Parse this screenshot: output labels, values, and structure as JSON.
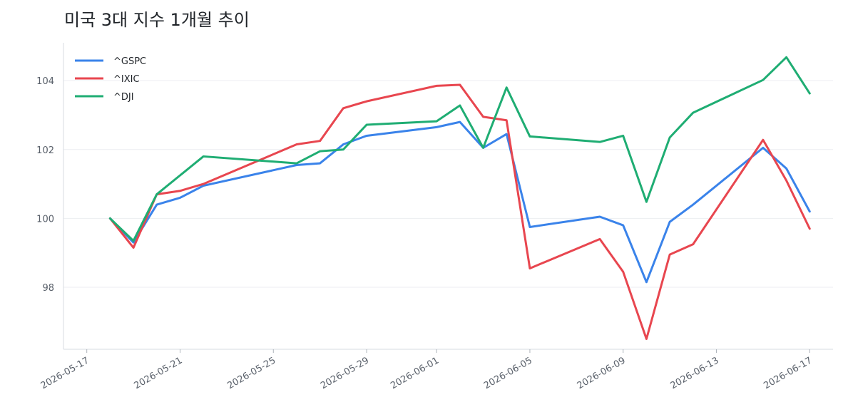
{
  "chart_data": {
    "type": "line",
    "title": "미국 3대 지수 1개월 추이",
    "xlabel": "",
    "ylabel": "",
    "x_tick_labels": [
      "2026-05-17",
      "2026-05-21",
      "2026-05-25",
      "2026-05-29",
      "2026-06-01",
      "2026-06-05",
      "2026-06-09",
      "2026-06-13",
      "2026-06-17"
    ],
    "y_ticks": [
      98,
      100,
      102,
      104
    ],
    "xlim": [
      "2026-05-16",
      "2026-06-18"
    ],
    "ylim": [
      96.2,
      105.1
    ],
    "grid": "horizontal",
    "legend_position": "top-left",
    "x": [
      "2026-05-18",
      "2026-05-19",
      "2026-05-20",
      "2026-05-21",
      "2026-05-22",
      "2026-05-26",
      "2026-05-27",
      "2026-05-28",
      "2026-05-29",
      "2026-06-01",
      "2026-06-02",
      "2026-06-03",
      "2026-06-04",
      "2026-06-05",
      "2026-06-08",
      "2026-06-09",
      "2026-06-10",
      "2026-06-11",
      "2026-06-12",
      "2026-06-15",
      "2026-06-16",
      "2026-06-17"
    ],
    "series": [
      {
        "name": "^GSPC",
        "color": "#3a83ea",
        "values": [
          100.0,
          99.3,
          100.4,
          100.6,
          100.95,
          101.55,
          101.6,
          102.15,
          102.4,
          102.65,
          102.8,
          102.05,
          102.45,
          99.75,
          100.05,
          99.8,
          98.15,
          99.9,
          100.4,
          102.05,
          101.45,
          100.2
        ]
      },
      {
        "name": "^IXIC",
        "color": "#e8464f",
        "values": [
          100.0,
          99.15,
          100.7,
          100.8,
          101.0,
          102.15,
          102.25,
          103.2,
          103.4,
          103.85,
          103.88,
          102.95,
          102.85,
          98.55,
          99.4,
          98.45,
          96.5,
          98.95,
          99.25,
          102.28,
          101.1,
          99.7
        ]
      },
      {
        "name": "^DJI",
        "color": "#1fad73",
        "values": [
          100.0,
          99.35,
          100.7,
          101.25,
          101.8,
          101.6,
          101.95,
          102.0,
          102.72,
          102.82,
          103.28,
          102.05,
          103.8,
          102.38,
          102.22,
          102.4,
          100.48,
          102.35,
          103.07,
          104.02,
          104.68,
          103.63
        ]
      }
    ]
  }
}
